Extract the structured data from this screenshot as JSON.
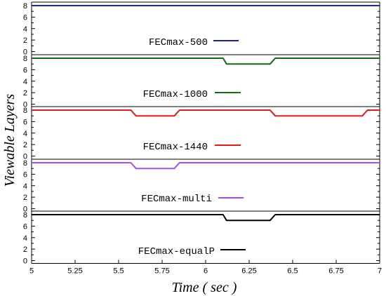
{
  "chart_data": {
    "type": "line",
    "xlabel": "Time ( sec )",
    "ylabel": "Viewable Layers",
    "xlim": [
      5,
      7
    ],
    "x_ticks": [
      "5",
      "5.25",
      "5.5",
      "5.75",
      "6",
      "6.25",
      "6.5",
      "6.75",
      "7"
    ],
    "x_tick_values": [
      5,
      5.25,
      5.5,
      5.75,
      6,
      6.25,
      6.5,
      6.75,
      7
    ],
    "ylim": [
      0,
      9
    ],
    "y_ticks": [
      "0",
      "2",
      "4",
      "6",
      "8"
    ],
    "y_tick_values": [
      0,
      2,
      4,
      6,
      8
    ],
    "grid": false,
    "legend_placement": "center of each panel",
    "panels": [
      {
        "series": [
          {
            "name": "FECmax-500",
            "color": "#1f1fa8",
            "points": [
              [
                5,
                8
              ],
              [
                7,
                8
              ]
            ]
          }
        ]
      },
      {
        "series": [
          {
            "name": "FECmax-1000",
            "color": "#0f6e0f",
            "points": [
              [
                5,
                8
              ],
              [
                6.1,
                8
              ],
              [
                6.12,
                7
              ],
              [
                6.37,
                7
              ],
              [
                6.4,
                8
              ],
              [
                7,
                8
              ]
            ]
          }
        ]
      },
      {
        "series": [
          {
            "name": "FECmax-1440",
            "color": "#e81a1a",
            "points": [
              [
                5,
                8
              ],
              [
                5.57,
                8
              ],
              [
                5.6,
                7
              ],
              [
                5.82,
                7
              ],
              [
                5.85,
                8
              ],
              [
                6.37,
                8
              ],
              [
                6.4,
                7
              ],
              [
                6.9,
                7
              ],
              [
                6.93,
                8
              ],
              [
                7,
                8
              ]
            ]
          }
        ]
      },
      {
        "series": [
          {
            "name": "FECmax-multi",
            "color": "#a64cff",
            "points": [
              [
                5,
                8
              ],
              [
                5.57,
                8
              ],
              [
                5.6,
                7
              ],
              [
                5.82,
                7
              ],
              [
                5.85,
                8
              ],
              [
                7,
                8
              ]
            ]
          }
        ]
      },
      {
        "series": [
          {
            "name": "FECmax-equalP",
            "color": "#000000",
            "points": [
              [
                5,
                8
              ],
              [
                6.1,
                8
              ],
              [
                6.12,
                7
              ],
              [
                6.37,
                7
              ],
              [
                6.4,
                8
              ],
              [
                7,
                8
              ]
            ]
          }
        ]
      }
    ]
  }
}
